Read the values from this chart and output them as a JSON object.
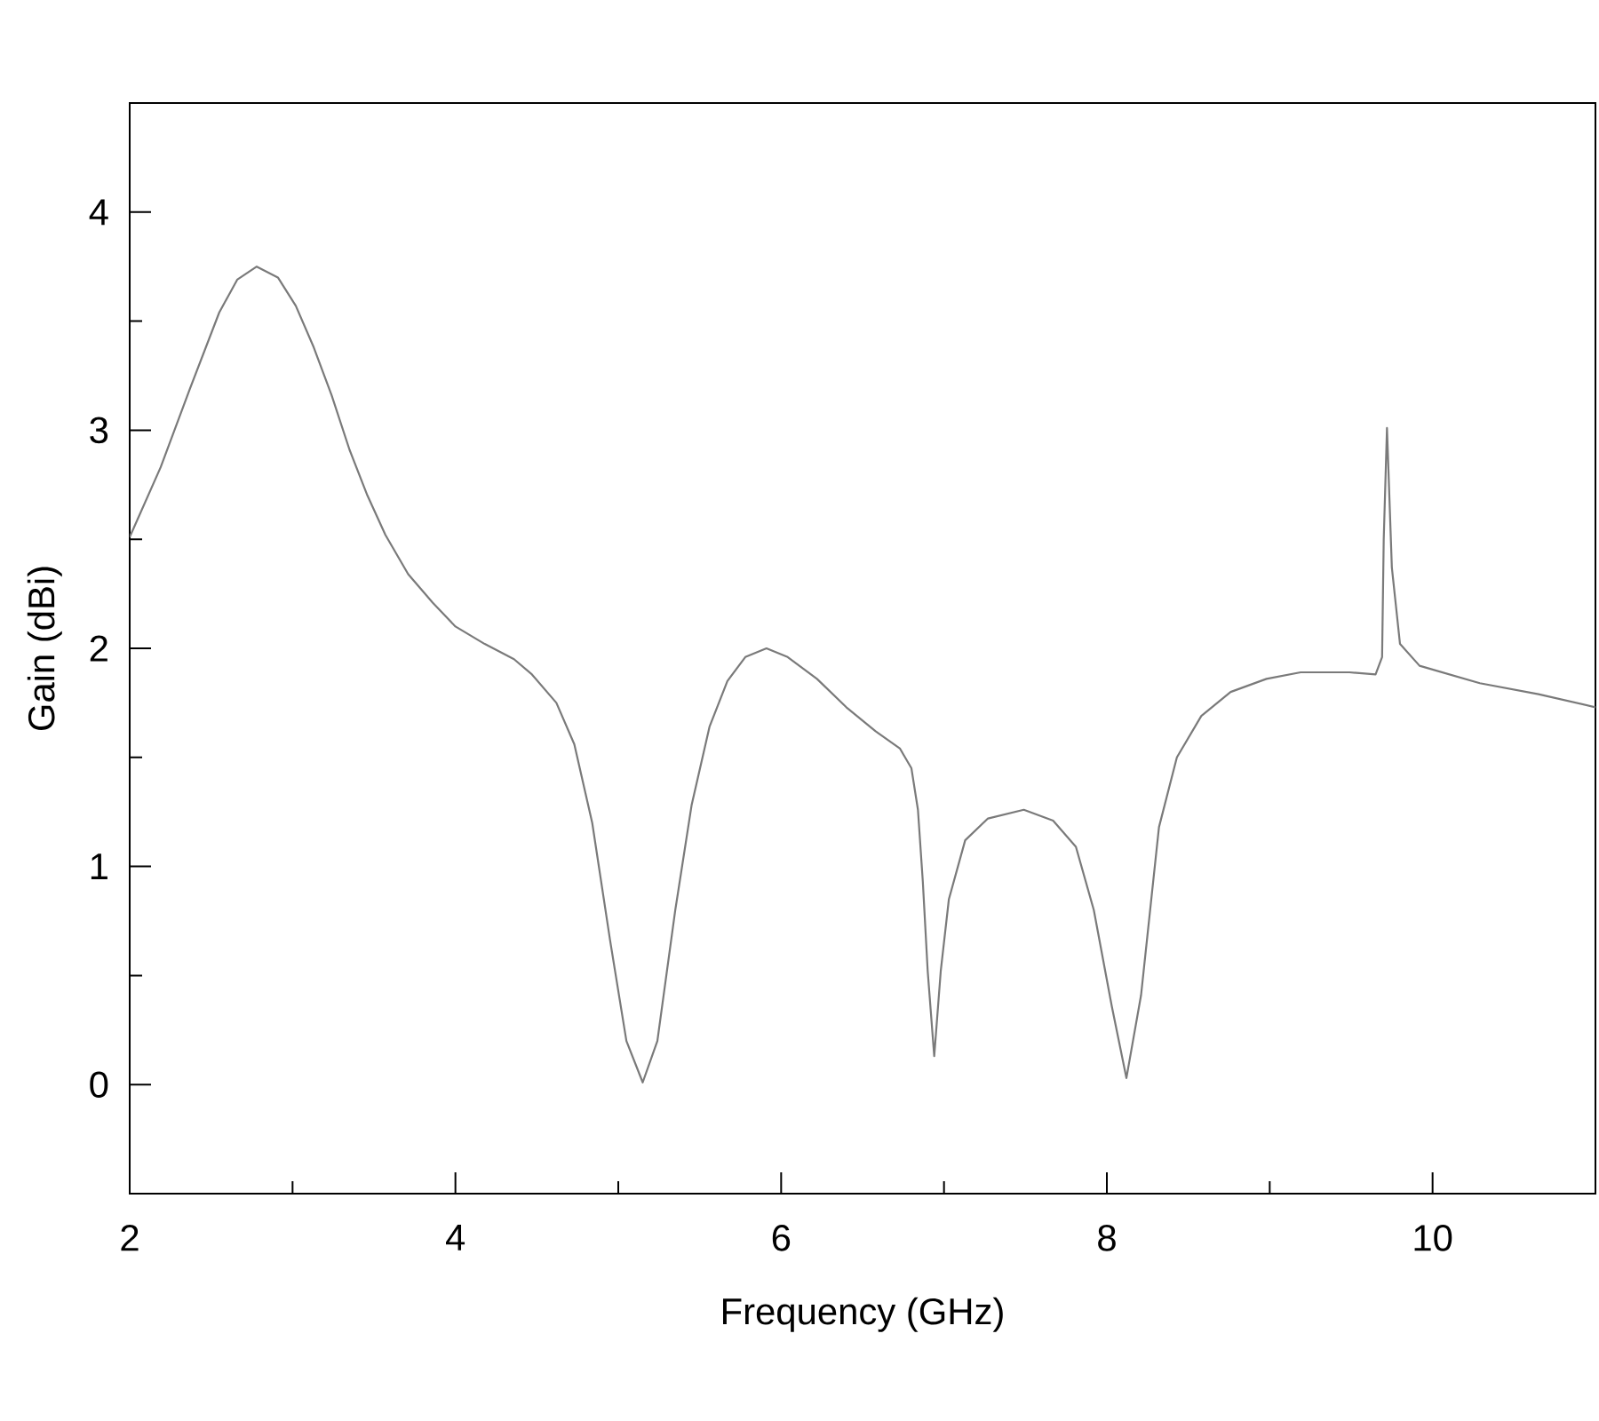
{
  "chart_data": {
    "type": "line",
    "xlabel": "Frequency (GHz)",
    "ylabel": "Gain (dBi)",
    "x": [
      2.0,
      2.19,
      2.37,
      2.55,
      2.66,
      2.78,
      2.91,
      3.02,
      3.13,
      3.24,
      3.35,
      3.46,
      3.57,
      3.71,
      3.86,
      4.0,
      4.18,
      4.36,
      4.47,
      4.62,
      4.73,
      4.84,
      4.95,
      5.05,
      5.15,
      5.24,
      5.35,
      5.45,
      5.56,
      5.67,
      5.78,
      5.91,
      6.04,
      6.22,
      6.4,
      6.58,
      6.73,
      6.8,
      6.84,
      6.87,
      6.9,
      6.94,
      6.98,
      7.03,
      7.13,
      7.27,
      7.49,
      7.67,
      7.81,
      7.92,
      8.03,
      8.12,
      8.21,
      8.32,
      8.43,
      8.58,
      8.76,
      8.98,
      9.19,
      9.49,
      9.65,
      9.69,
      9.7,
      9.72,
      9.75,
      9.8,
      9.92,
      10.29,
      10.65,
      11.0
    ],
    "series": [
      {
        "color": "#7a7a7a",
        "values": [
          2.51,
          2.83,
          3.19,
          3.54,
          3.69,
          3.75,
          3.7,
          3.57,
          3.38,
          3.16,
          2.91,
          2.7,
          2.52,
          2.34,
          2.21,
          2.1,
          2.02,
          1.95,
          1.88,
          1.75,
          1.56,
          1.2,
          0.66,
          0.2,
          0.01,
          0.2,
          0.8,
          1.28,
          1.64,
          1.85,
          1.96,
          2.0,
          1.96,
          1.86,
          1.73,
          1.62,
          1.54,
          1.45,
          1.26,
          0.93,
          0.52,
          0.13,
          0.52,
          0.85,
          1.12,
          1.22,
          1.26,
          1.21,
          1.09,
          0.8,
          0.36,
          0.03,
          0.41,
          1.18,
          1.5,
          1.69,
          1.8,
          1.86,
          1.89,
          1.89,
          1.88,
          1.96,
          2.5,
          3.01,
          2.37,
          2.02,
          1.92,
          1.84,
          1.79,
          1.73
        ]
      }
    ],
    "xlim": [
      2,
      11
    ],
    "ylim": [
      -0.5,
      4.5
    ],
    "xticks": [
      2,
      {
        "value": 3,
        "label": null
      },
      4,
      {
        "value": 5,
        "label": null
      },
      6,
      {
        "value": 7,
        "label": null
      },
      8,
      {
        "value": 9,
        "label": null
      },
      10
    ],
    "yticks": [
      0,
      {
        "value": 0.5,
        "label": null
      },
      1,
      {
        "value": 1.5,
        "label": null
      },
      2,
      {
        "value": 2.5,
        "label": null
      },
      3,
      {
        "value": 3.5,
        "label": null
      },
      4
    ],
    "marker": "none",
    "line_style": "solid"
  }
}
